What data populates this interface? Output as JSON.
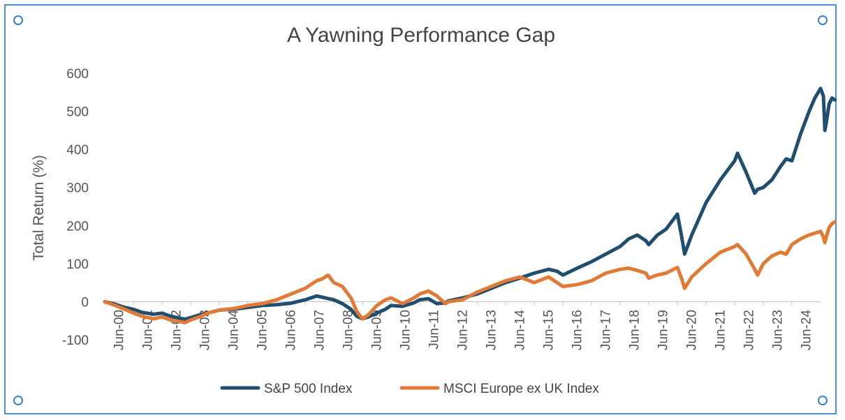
{
  "chart_data": {
    "type": "line",
    "title": "A Yawning Performance Gap",
    "xlabel": "",
    "ylabel": "Total Return (%)",
    "ylim": [
      -100,
      600
    ],
    "yticks": [
      600,
      500,
      400,
      300,
      200,
      100,
      0,
      -100
    ],
    "categories": [
      "Jun-00",
      "Jun-01",
      "Jun-02",
      "Jun-03",
      "Jun-04",
      "Jun-05",
      "Jun-06",
      "Jun-07",
      "Jun-08",
      "Jun-09",
      "Jun-10",
      "Jun-11",
      "Jun-12",
      "Jun-13",
      "Jun-14",
      "Jun-15",
      "Jun-16",
      "Jun-17",
      "Jun-18",
      "Jun-19",
      "Jun-20",
      "Jun-21",
      "Jun-22",
      "Jun-23",
      "Jun-24"
    ],
    "xlim": [
      2000.0,
      2025.0
    ],
    "legend_position": "bottom",
    "series": [
      {
        "name": "S&P 500 Index",
        "color": "#1f4e6e",
        "points": [
          [
            2000.0,
            0
          ],
          [
            2000.3,
            -5
          ],
          [
            2000.7,
            -15
          ],
          [
            2001.0,
            -20
          ],
          [
            2001.3,
            -28
          ],
          [
            2001.7,
            -33
          ],
          [
            2002.0,
            -30
          ],
          [
            2002.3,
            -38
          ],
          [
            2002.6,
            -43
          ],
          [
            2002.8,
            -46
          ],
          [
            2003.0,
            -42
          ],
          [
            2003.3,
            -35
          ],
          [
            2003.6,
            -30
          ],
          [
            2004.0,
            -22
          ],
          [
            2004.5,
            -20
          ],
          [
            2005.0,
            -15
          ],
          [
            2005.5,
            -10
          ],
          [
            2006.0,
            -8
          ],
          [
            2006.5,
            -4
          ],
          [
            2007.0,
            5
          ],
          [
            2007.4,
            15
          ],
          [
            2007.7,
            10
          ],
          [
            2008.0,
            5
          ],
          [
            2008.3,
            -5
          ],
          [
            2008.6,
            -20
          ],
          [
            2008.8,
            -38
          ],
          [
            2009.0,
            -45
          ],
          [
            2009.2,
            -40
          ],
          [
            2009.5,
            -30
          ],
          [
            2009.8,
            -20
          ],
          [
            2010.0,
            -10
          ],
          [
            2010.4,
            -12
          ],
          [
            2010.8,
            -3
          ],
          [
            2011.0,
            5
          ],
          [
            2011.3,
            8
          ],
          [
            2011.6,
            -5
          ],
          [
            2011.9,
            -3
          ],
          [
            2012.0,
            2
          ],
          [
            2012.5,
            10
          ],
          [
            2013.0,
            20
          ],
          [
            2013.5,
            35
          ],
          [
            2014.0,
            50
          ],
          [
            2014.5,
            62
          ],
          [
            2015.0,
            75
          ],
          [
            2015.5,
            85
          ],
          [
            2015.8,
            80
          ],
          [
            2016.0,
            70
          ],
          [
            2016.5,
            88
          ],
          [
            2017.0,
            105
          ],
          [
            2017.5,
            125
          ],
          [
            2018.0,
            145
          ],
          [
            2018.3,
            165
          ],
          [
            2018.6,
            175
          ],
          [
            2018.9,
            160
          ],
          [
            2019.0,
            150
          ],
          [
            2019.3,
            175
          ],
          [
            2019.6,
            190
          ],
          [
            2020.0,
            230
          ],
          [
            2020.15,
            170
          ],
          [
            2020.25,
            125
          ],
          [
            2020.5,
            175
          ],
          [
            2021.0,
            260
          ],
          [
            2021.5,
            320
          ],
          [
            2022.0,
            370
          ],
          [
            2022.1,
            390
          ],
          [
            2022.4,
            340
          ],
          [
            2022.7,
            285
          ],
          [
            2022.8,
            295
          ],
          [
            2023.0,
            300
          ],
          [
            2023.3,
            320
          ],
          [
            2023.6,
            355
          ],
          [
            2023.8,
            375
          ],
          [
            2024.0,
            370
          ],
          [
            2024.3,
            440
          ],
          [
            2024.6,
            500
          ],
          [
            2024.8,
            535
          ],
          [
            2025.0,
            560
          ],
          [
            2025.1,
            540
          ],
          [
            2025.15,
            450
          ],
          [
            2025.2,
            470
          ],
          [
            2025.3,
            520
          ],
          [
            2025.4,
            535
          ],
          [
            2025.5,
            530
          ]
        ]
      },
      {
        "name": "MSCI Europe ex UK Index",
        "color": "#e07a35",
        "points": [
          [
            2000.0,
            0
          ],
          [
            2000.3,
            -8
          ],
          [
            2000.7,
            -20
          ],
          [
            2001.0,
            -30
          ],
          [
            2001.3,
            -38
          ],
          [
            2001.7,
            -45
          ],
          [
            2002.0,
            -40
          ],
          [
            2002.3,
            -48
          ],
          [
            2002.6,
            -52
          ],
          [
            2002.8,
            -55
          ],
          [
            2003.0,
            -48
          ],
          [
            2003.3,
            -40
          ],
          [
            2003.6,
            -30
          ],
          [
            2004.0,
            -22
          ],
          [
            2004.5,
            -18
          ],
          [
            2005.0,
            -10
          ],
          [
            2005.5,
            -5
          ],
          [
            2006.0,
            5
          ],
          [
            2006.5,
            20
          ],
          [
            2007.0,
            35
          ],
          [
            2007.4,
            55
          ],
          [
            2007.6,
            60
          ],
          [
            2007.8,
            70
          ],
          [
            2008.0,
            50
          ],
          [
            2008.3,
            40
          ],
          [
            2008.6,
            10
          ],
          [
            2008.8,
            -25
          ],
          [
            2009.0,
            -45
          ],
          [
            2009.2,
            -35
          ],
          [
            2009.5,
            -10
          ],
          [
            2009.8,
            5
          ],
          [
            2010.0,
            10
          ],
          [
            2010.4,
            -5
          ],
          [
            2010.8,
            10
          ],
          [
            2011.0,
            20
          ],
          [
            2011.3,
            28
          ],
          [
            2011.6,
            15
          ],
          [
            2011.9,
            -5
          ],
          [
            2012.0,
            0
          ],
          [
            2012.5,
            5
          ],
          [
            2013.0,
            25
          ],
          [
            2013.5,
            40
          ],
          [
            2014.0,
            55
          ],
          [
            2014.5,
            65
          ],
          [
            2015.0,
            50
          ],
          [
            2015.5,
            65
          ],
          [
            2015.8,
            50
          ],
          [
            2016.0,
            40
          ],
          [
            2016.5,
            45
          ],
          [
            2017.0,
            55
          ],
          [
            2017.5,
            75
          ],
          [
            2018.0,
            85
          ],
          [
            2018.3,
            88
          ],
          [
            2018.6,
            82
          ],
          [
            2018.9,
            75
          ],
          [
            2019.0,
            62
          ],
          [
            2019.3,
            70
          ],
          [
            2019.6,
            75
          ],
          [
            2020.0,
            90
          ],
          [
            2020.15,
            60
          ],
          [
            2020.25,
            35
          ],
          [
            2020.5,
            65
          ],
          [
            2021.0,
            100
          ],
          [
            2021.5,
            130
          ],
          [
            2022.0,
            145
          ],
          [
            2022.1,
            150
          ],
          [
            2022.4,
            125
          ],
          [
            2022.7,
            85
          ],
          [
            2022.8,
            70
          ],
          [
            2023.0,
            100
          ],
          [
            2023.3,
            120
          ],
          [
            2023.6,
            130
          ],
          [
            2023.8,
            125
          ],
          [
            2024.0,
            150
          ],
          [
            2024.3,
            165
          ],
          [
            2024.6,
            175
          ],
          [
            2024.8,
            180
          ],
          [
            2025.0,
            185
          ],
          [
            2025.1,
            170
          ],
          [
            2025.15,
            155
          ],
          [
            2025.2,
            170
          ],
          [
            2025.3,
            195
          ],
          [
            2025.4,
            205
          ],
          [
            2025.5,
            210
          ]
        ]
      }
    ]
  }
}
